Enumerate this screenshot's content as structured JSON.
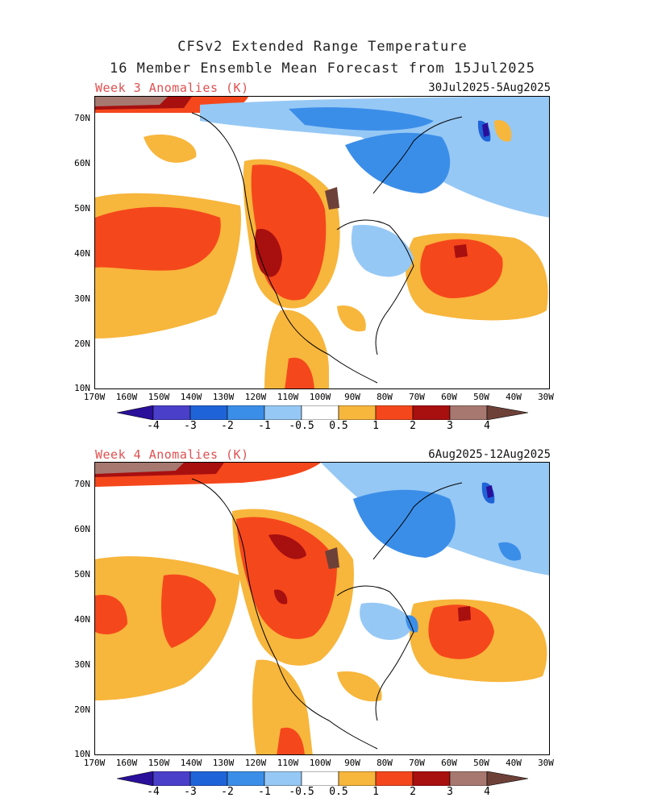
{
  "header": {
    "title_line1": "CFSv2 Extended Range Temperature",
    "title_line2": "16 Member Ensemble Mean Forecast from 15Jul2025"
  },
  "panels": [
    {
      "label": "Week 3 Anomalies (K)",
      "date_range": "30Jul2025-5Aug2025"
    },
    {
      "label": "Week 4 Anomalies (K)",
      "date_range": "6Aug2025-12Aug2025"
    }
  ],
  "axes": {
    "lat_labels": [
      "70N",
      "60N",
      "50N",
      "40N",
      "30N",
      "20N",
      "10N"
    ],
    "lon_labels": [
      "170W",
      "160W",
      "150W",
      "140W",
      "130W",
      "120W",
      "110W",
      "100W",
      "90W",
      "80W",
      "70W",
      "60W",
      "50W",
      "40W",
      "30W"
    ]
  },
  "colorbar": {
    "tick_labels": [
      "-4",
      "-3",
      "-2",
      "-1",
      "-0.5",
      "0.5",
      "1",
      "2",
      "3",
      "4"
    ],
    "colors": [
      "#2a0f9a",
      "#4a3fc8",
      "#1f63d8",
      "#3b8ee8",
      "#96c8f5",
      "#ffffff",
      "#f7b63c",
      "#f5471c",
      "#a80f0f",
      "#a67870",
      "#6e4138"
    ]
  }
}
